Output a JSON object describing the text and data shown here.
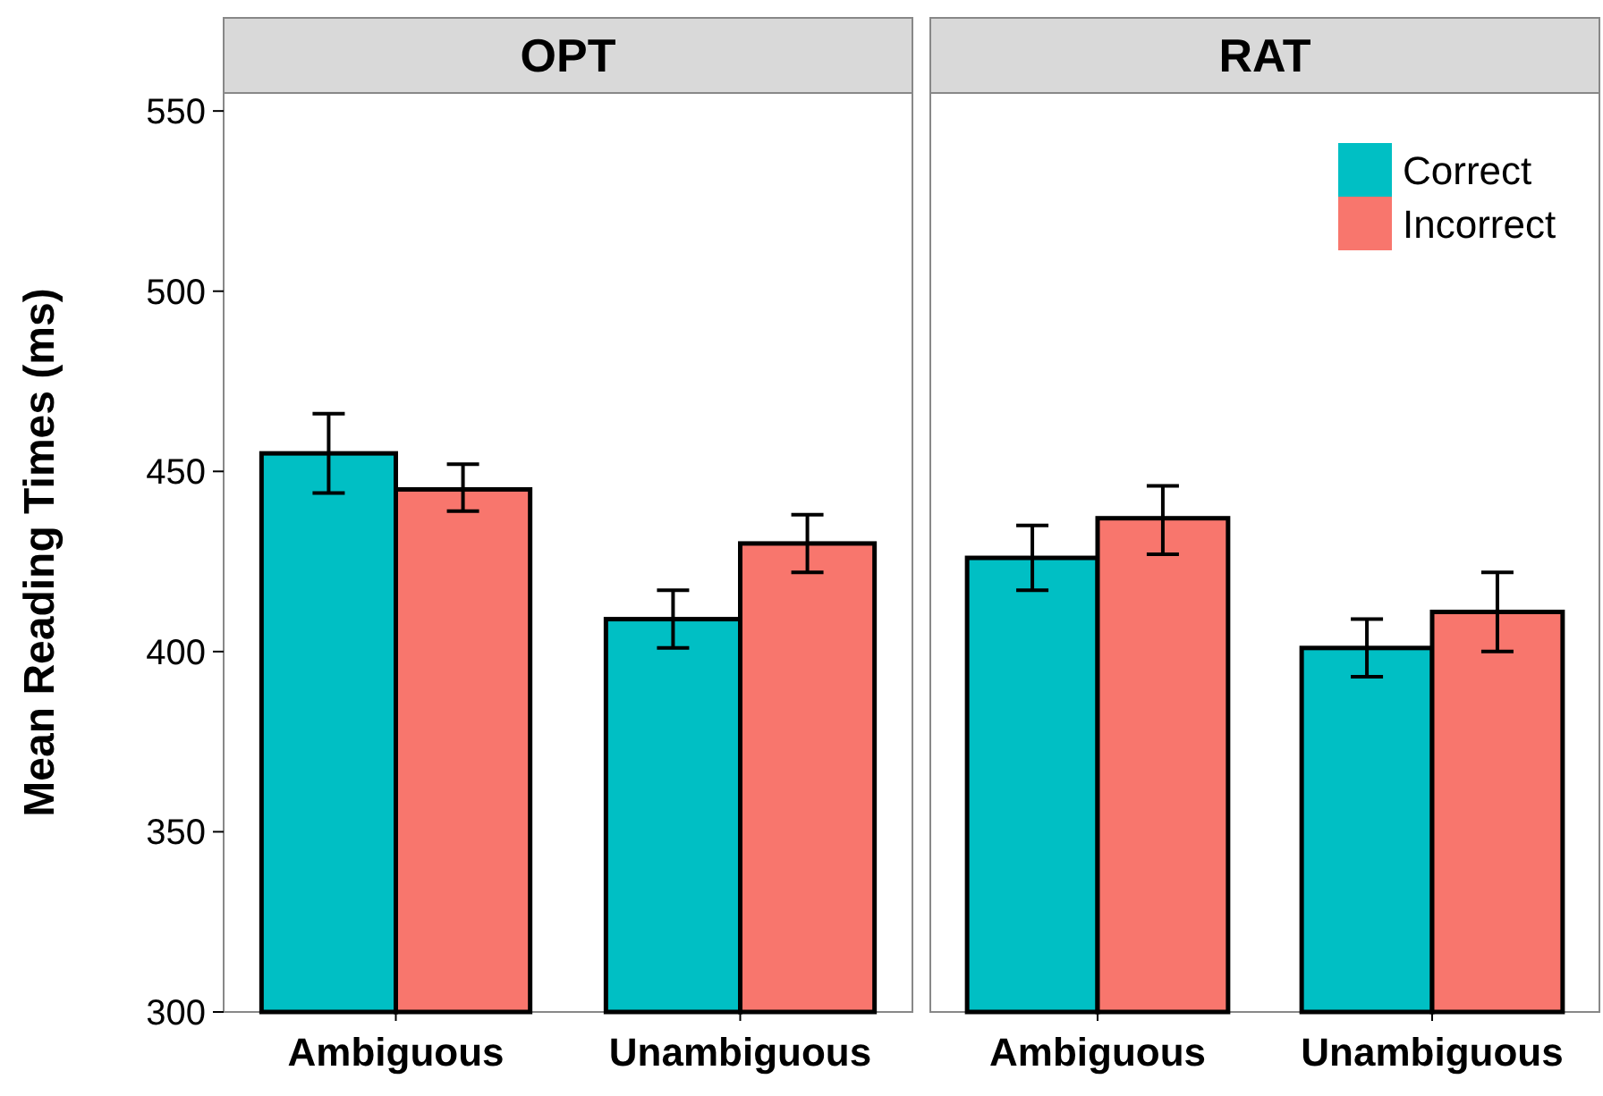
{
  "chart_data": [
    {
      "type": "bar",
      "title": "OPT",
      "ylabel": "Mean Reading Times (ms)",
      "categories": [
        "Ambiguous",
        "Unambiguous"
      ],
      "ylim": [
        300,
        555
      ],
      "yticks": [
        300,
        350,
        400,
        450,
        500,
        550
      ],
      "grid": false,
      "legend": false,
      "series": [
        {
          "color": "#00bfc4",
          "values": [
            455,
            409
          ],
          "errors": [
            [
              444,
              466
            ],
            [
              401,
              417
            ]
          ]
        },
        {
          "color": "#f8766d",
          "values": [
            445,
            430
          ],
          "errors": [
            [
              439,
              452
            ],
            [
              422,
              438
            ]
          ]
        }
      ]
    },
    {
      "type": "bar",
      "title": "RAT",
      "categories": [
        "Ambiguous",
        "Unambiguous"
      ],
      "ylim": [
        300,
        555
      ],
      "tick_labels": "x",
      "grid": false,
      "legend": "top right",
      "series": [
        {
          "name": "Correct",
          "color": "#00bfc4",
          "values": [
            426,
            401
          ],
          "errors": [
            [
              417,
              435
            ],
            [
              393,
              409
            ]
          ]
        },
        {
          "name": "Incorrect",
          "color": "#f8766d",
          "values": [
            437,
            411
          ],
          "errors": [
            [
              427,
              446
            ],
            [
              400,
              422
            ]
          ]
        }
      ]
    }
  ]
}
